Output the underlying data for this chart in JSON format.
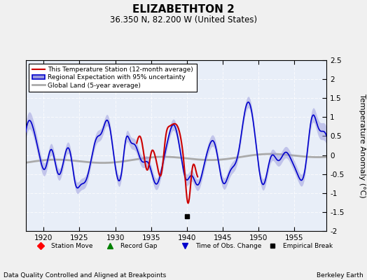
{
  "title": "ELIZABETHTON 2",
  "subtitle": "36.350 N, 82.200 W (United States)",
  "ylabel": "Temperature Anomaly (°C)",
  "xlabel_bottom_left": "Data Quality Controlled and Aligned at Breakpoints",
  "xlabel_bottom_right": "Berkeley Earth",
  "ylim": [
    -2.0,
    2.5
  ],
  "xlim": [
    1917.5,
    1959.5
  ],
  "yticks": [
    -2.0,
    -1.5,
    -1.0,
    -0.5,
    0.0,
    0.5,
    1.0,
    1.5,
    2.0,
    2.5
  ],
  "xticks": [
    1920,
    1925,
    1930,
    1935,
    1940,
    1945,
    1950,
    1955
  ],
  "background_color": "#f0f0f0",
  "plot_bg_color": "#e8eef8",
  "regional_color": "#0000cc",
  "regional_fill_color": "#9999dd",
  "station_color": "#cc0000",
  "global_color": "#aaaaaa",
  "global_lw": 2.0,
  "empirical_break_x": 1940.0,
  "empirical_break_y": -1.62,
  "time_of_obs_x": 1940.0
}
